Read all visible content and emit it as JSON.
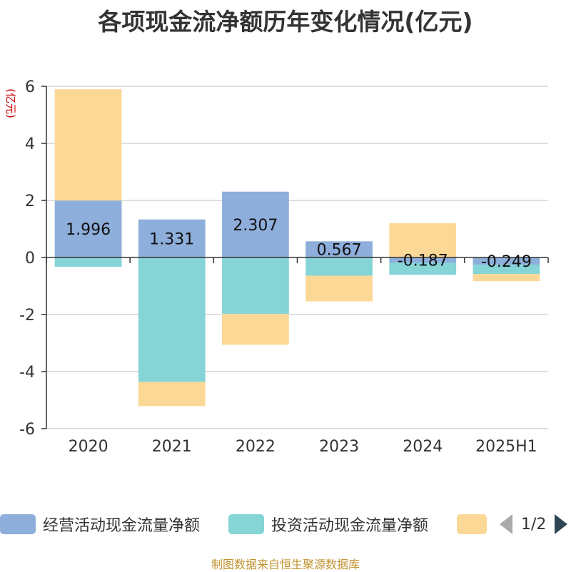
{
  "chart_data": {
    "type": "bar",
    "stacked": true,
    "title": "各项现金流净额历年变化情况(亿元)",
    "ylabel": "(亿元)",
    "categories": [
      "2020",
      "2021",
      "2022",
      "2023",
      "2024",
      "2025H1"
    ],
    "ylim": [
      -6,
      6
    ],
    "yticks": [
      6,
      4,
      2,
      0,
      -2,
      -4,
      -6
    ],
    "grid": true,
    "series": [
      {
        "name": "经营活动现金流量净额",
        "color": "#8eaedb",
        "values": [
          1.996,
          1.331,
          2.307,
          0.567,
          -0.187,
          -0.249
        ],
        "labels": [
          "1.996",
          "1.331",
          "2.307",
          "0.567",
          "-0.187",
          "-0.249"
        ]
      },
      {
        "name": "投资活动现金流量净额",
        "color": "#85d4d6",
        "values": [
          -0.33,
          -4.36,
          -1.98,
          -0.64,
          -0.42,
          -0.33
        ]
      },
      {
        "name": "",
        "color": "#fcd897",
        "values": [
          3.9,
          -0.85,
          -1.08,
          -0.9,
          1.2,
          -0.25
        ]
      }
    ]
  },
  "legend": {
    "page": "1/2"
  },
  "footer": {
    "source": "制图数据来自恒生聚源数据库"
  }
}
